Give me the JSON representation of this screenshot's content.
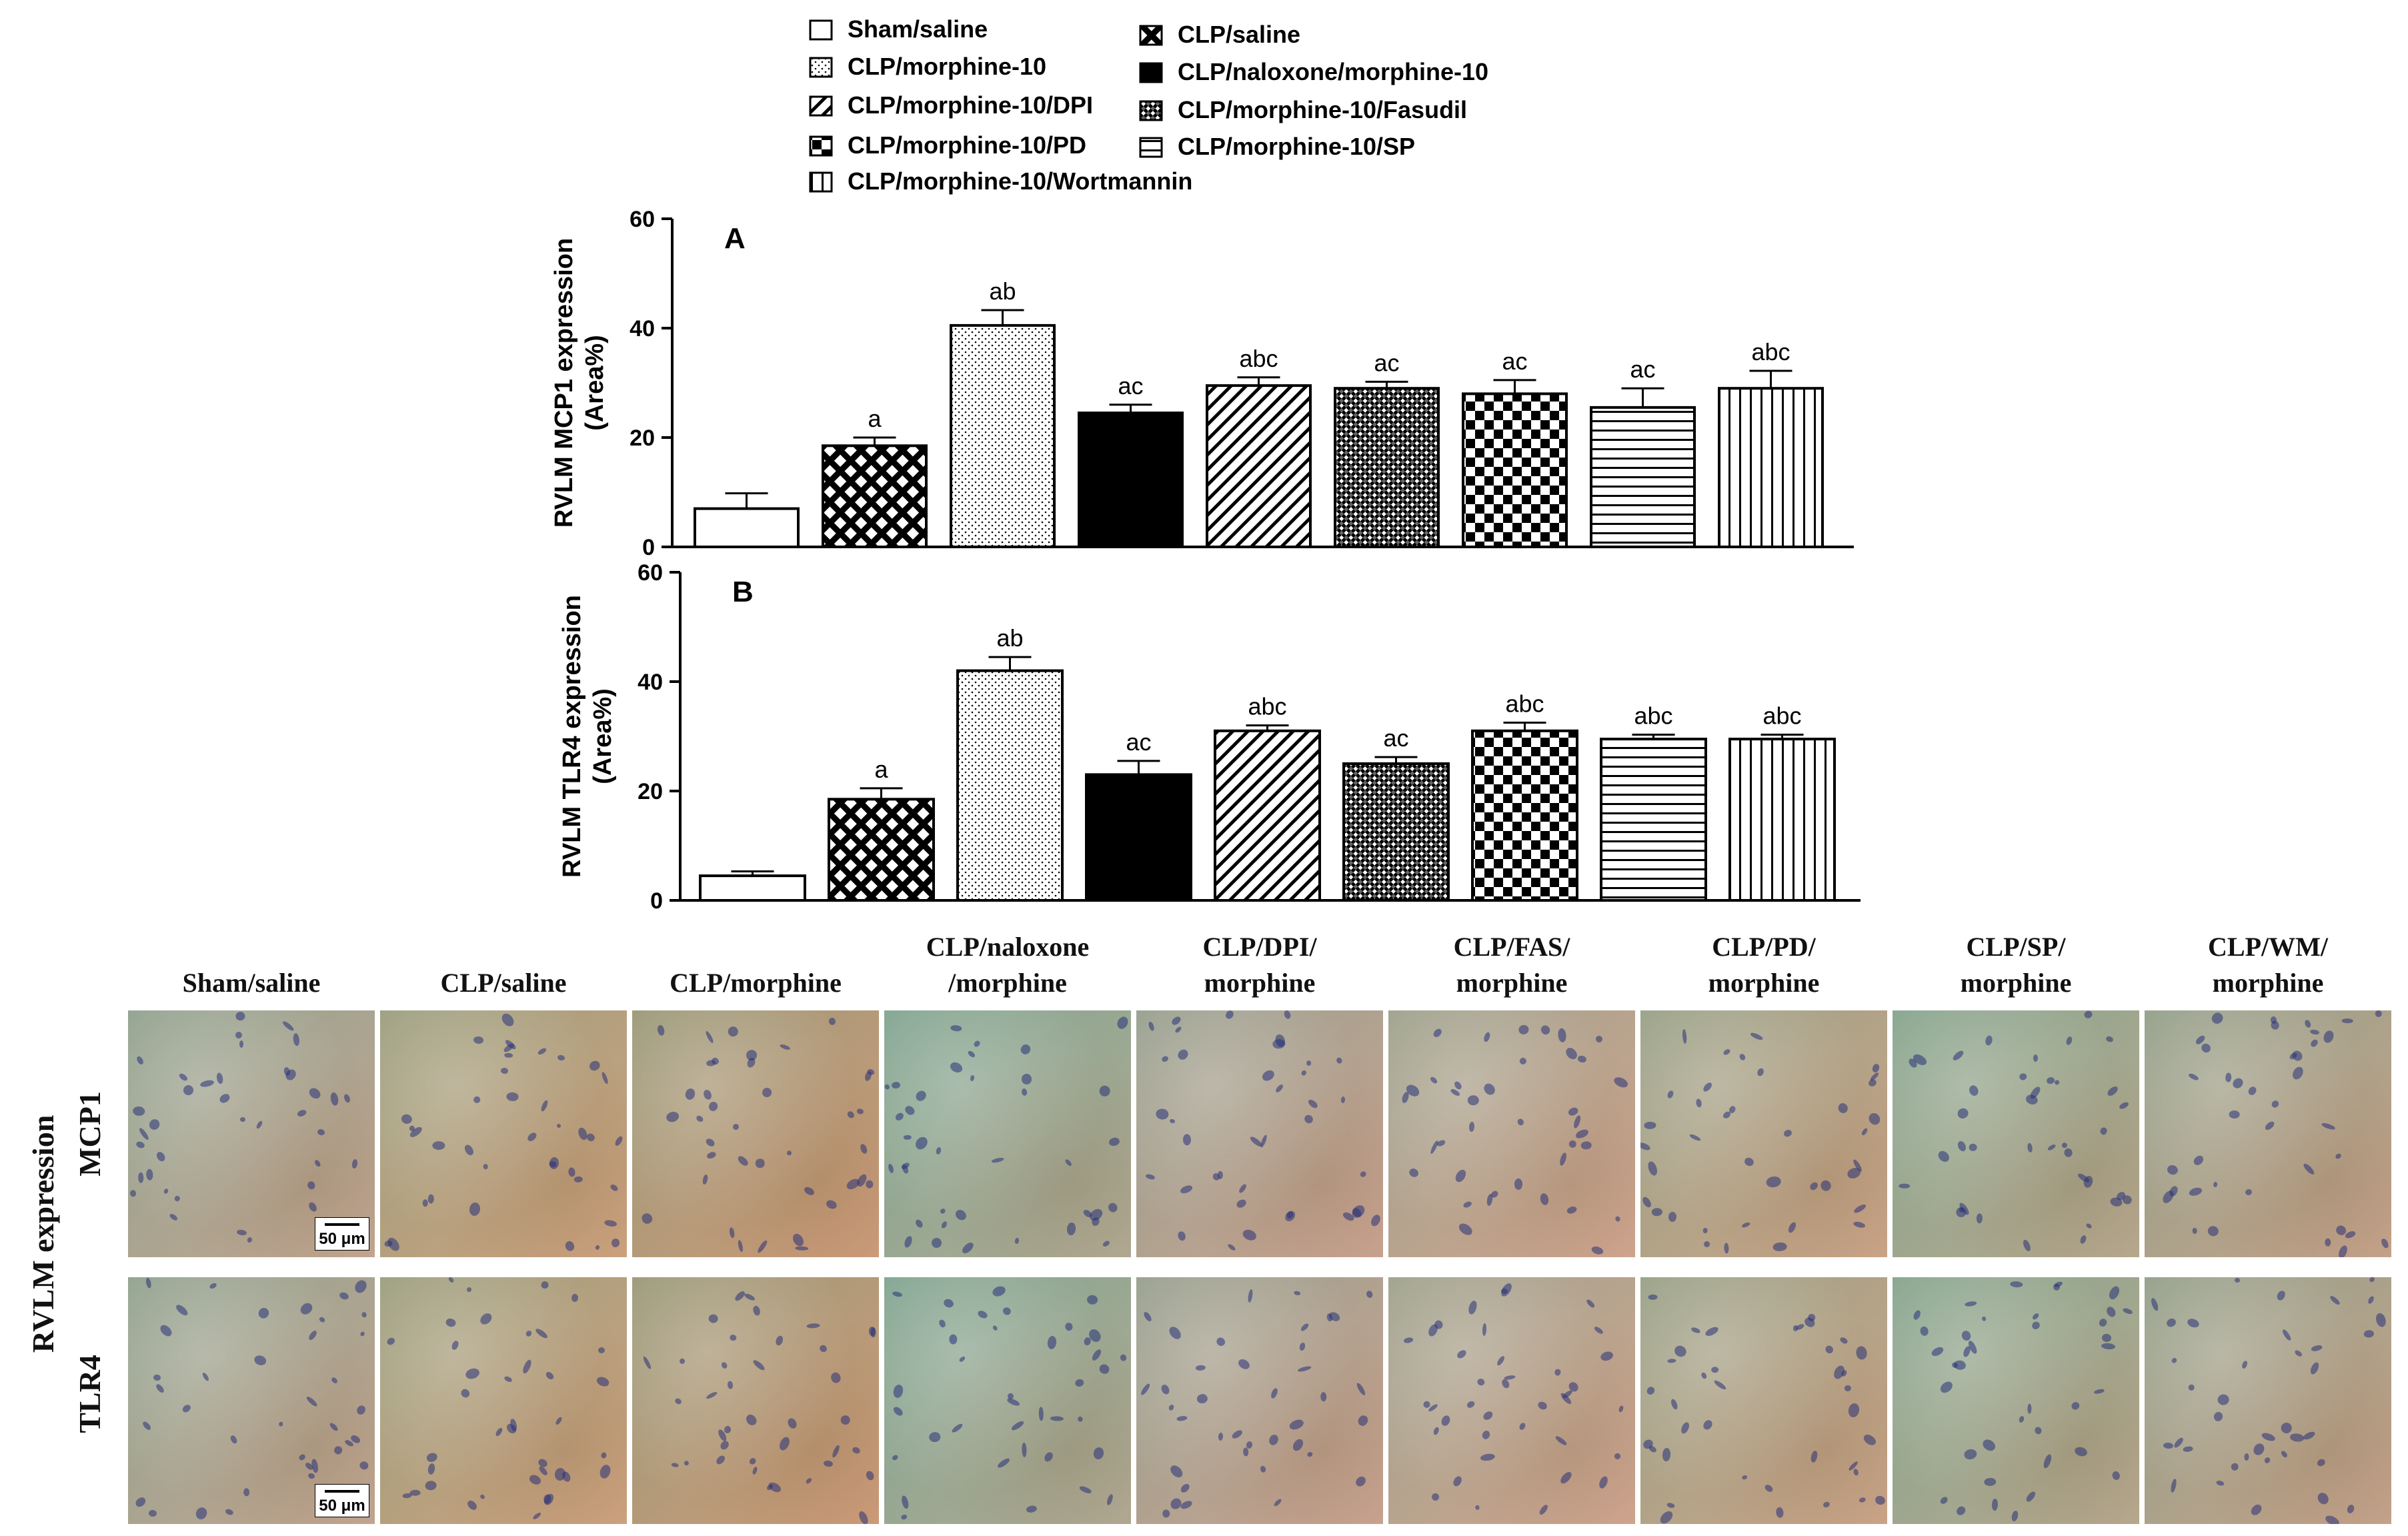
{
  "legend": [
    {
      "label": "Sham/saline",
      "pattern": "empty"
    },
    {
      "label": "CLP/saline",
      "pattern": "crosshatch"
    },
    {
      "label": "CLP/morphine-10",
      "pattern": "dots"
    },
    {
      "label": "CLP/naloxone/morphine-10",
      "pattern": "solid"
    },
    {
      "label": "CLP/morphine-10/DPI",
      "pattern": "diagonal"
    },
    {
      "label": "CLP/morphine-10/Fasudil",
      "pattern": "finecheck"
    },
    {
      "label": "CLP/morphine-10/PD",
      "pattern": "checker"
    },
    {
      "label": "CLP/morphine-10/SP",
      "pattern": "horizontal"
    },
    {
      "label": "CLP/morphine-10/Wortmannin",
      "pattern": "vertical"
    }
  ],
  "chart_data": [
    {
      "type": "bar",
      "panel_label": "A",
      "ylabel_line1": "RVLM MCP1 expression",
      "ylabel_line2": "(Area%)",
      "ylim": [
        0,
        60
      ],
      "yticks": [
        "0",
        "20",
        "40",
        "60"
      ],
      "categories": [
        "Sham/saline",
        "CLP/saline",
        "CLP/morphine-10",
        "CLP/naloxone/morphine-10",
        "CLP/morphine-10/DPI",
        "CLP/morphine-10/Fasudil",
        "CLP/morphine-10/PD",
        "CLP/morphine-10/SP",
        "CLP/morphine-10/Wortmannin"
      ],
      "values": [
        7,
        18.5,
        40.5,
        24.5,
        29.5,
        29,
        28,
        25.5,
        29
      ],
      "errors": [
        2.8,
        1.5,
        2.8,
        1.5,
        1.5,
        1.2,
        2.5,
        3.5,
        3.2
      ],
      "annotations": [
        "",
        "a",
        "ab",
        "ac",
        "abc",
        "ac",
        "ac",
        "ac",
        "abc"
      ]
    },
    {
      "type": "bar",
      "panel_label": "B",
      "ylabel_line1": "RVLM TLR4 expression",
      "ylabel_line2": "(Area%)",
      "ylim": [
        0,
        60
      ],
      "yticks": [
        "0",
        "20",
        "40",
        "60"
      ],
      "categories": [
        "Sham/saline",
        "CLP/saline",
        "CLP/morphine-10",
        "CLP/naloxone/morphine-10",
        "CLP/morphine-10/DPI",
        "CLP/morphine-10/Fasudil",
        "CLP/morphine-10/PD",
        "CLP/morphine-10/SP",
        "CLP/morphine-10/Wortmannin"
      ],
      "values": [
        4.5,
        18.5,
        42,
        23,
        31,
        25,
        31,
        29.5,
        29.5
      ],
      "errors": [
        0.8,
        2,
        2.5,
        2.5,
        1,
        1.2,
        1.5,
        0.8,
        0.8
      ],
      "annotations": [
        "",
        "a",
        "ab",
        "ac",
        "abc",
        "ac",
        "abc",
        "abc",
        "abc"
      ]
    }
  ],
  "micrographs": {
    "columns": [
      {
        "line1": "",
        "line2": "Sham/saline"
      },
      {
        "line1": "",
        "line2": "CLP/saline"
      },
      {
        "line1": "",
        "line2": "CLP/morphine"
      },
      {
        "line1": "CLP/naloxone",
        "line2": "/morphine"
      },
      {
        "line1": "CLP/DPI/",
        "line2": "morphine"
      },
      {
        "line1": "CLP/FAS/",
        "line2": "morphine"
      },
      {
        "line1": "CLP/PD/",
        "line2": "morphine"
      },
      {
        "line1": "CLP/SP/",
        "line2": "morphine"
      },
      {
        "line1": "CLP/WM/",
        "line2": "morphine"
      }
    ],
    "side_label": "RVLM  expression",
    "rows": [
      "MCP1",
      "TLR4"
    ],
    "scale_bar": "50 μm",
    "tints": [
      "#b9a995",
      "#c9a37a",
      "#c89a72",
      "#9fae98",
      "#c3a594",
      "#cda892",
      "#c5a788",
      "#a8ad92",
      "#bca58c"
    ]
  }
}
